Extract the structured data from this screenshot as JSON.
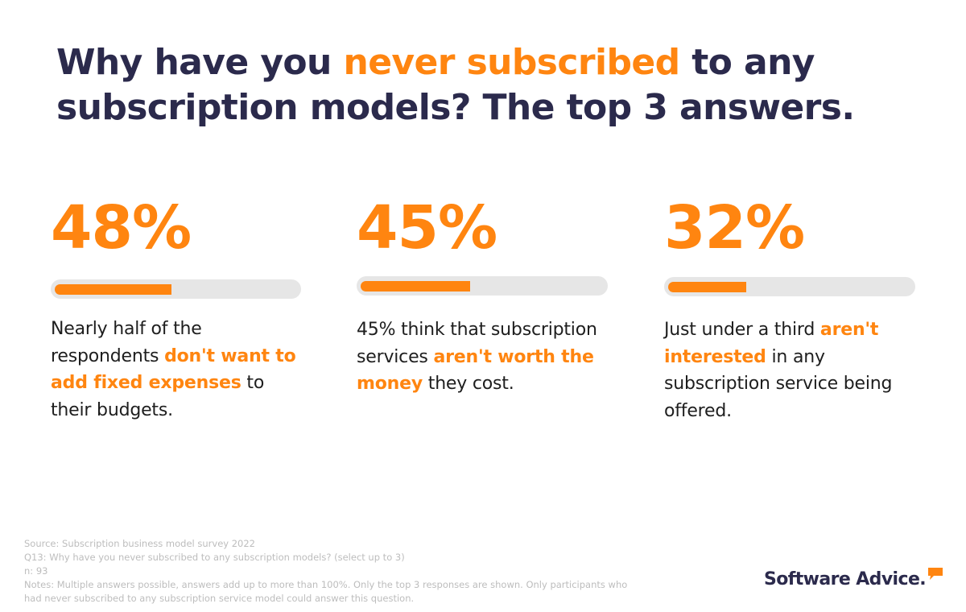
{
  "title": {
    "part1": "Why have you ",
    "highlight": "never subscribed",
    "part2": " to any subscription models? The top 3 answers."
  },
  "colors": {
    "accent": "#ff8510",
    "title": "#2b2a4c",
    "track": "#e6e6e6",
    "body_text": "#1e1e1e",
    "footer_text": "#bdbdbd"
  },
  "stats": [
    {
      "value": "48%",
      "percent": 48,
      "desc_before": "Nearly half of the respondents ",
      "desc_highlight": "don't want to add fixed expenses",
      "desc_after": " to their budgets."
    },
    {
      "value": "45%",
      "percent": 45,
      "desc_before": "45% think that subscription services ",
      "desc_highlight": "aren't worth the money",
      "desc_after": " they cost."
    },
    {
      "value": "32%",
      "percent": 32,
      "desc_before": "Just under a third ",
      "desc_highlight": "aren't interested",
      "desc_after": " in any subscription service being offered."
    }
  ],
  "chart_data": {
    "type": "bar",
    "title": "Why have you never subscribed to any subscription models? The top 3 answers.",
    "categories": [
      "Don't want to add fixed expenses to their budgets",
      "Subscription services aren't worth the money they cost",
      "Aren't interested in any subscription service being offered"
    ],
    "values": [
      48,
      45,
      32
    ],
    "unit": "%",
    "xlabel": "",
    "ylabel": "",
    "ylim": [
      0,
      100
    ],
    "orientation": "horizontal progress bars",
    "grid": false,
    "legend": null
  },
  "footer": {
    "source": "Source: Subscription business model survey 2022",
    "question": "Q13: Why have you never subscribed to any subscription models? (select up to 3)",
    "n": "n: 93",
    "notes_line1": "Notes: Multiple answers possible, answers add up to more than 100%. Only the top 3 responses are shown. Only participants who",
    "notes_line2": "had never subscribed to any subscription service model could answer this question."
  },
  "logo": {
    "text": "Software Advice.",
    "icon": "speech-bubble-icon"
  }
}
